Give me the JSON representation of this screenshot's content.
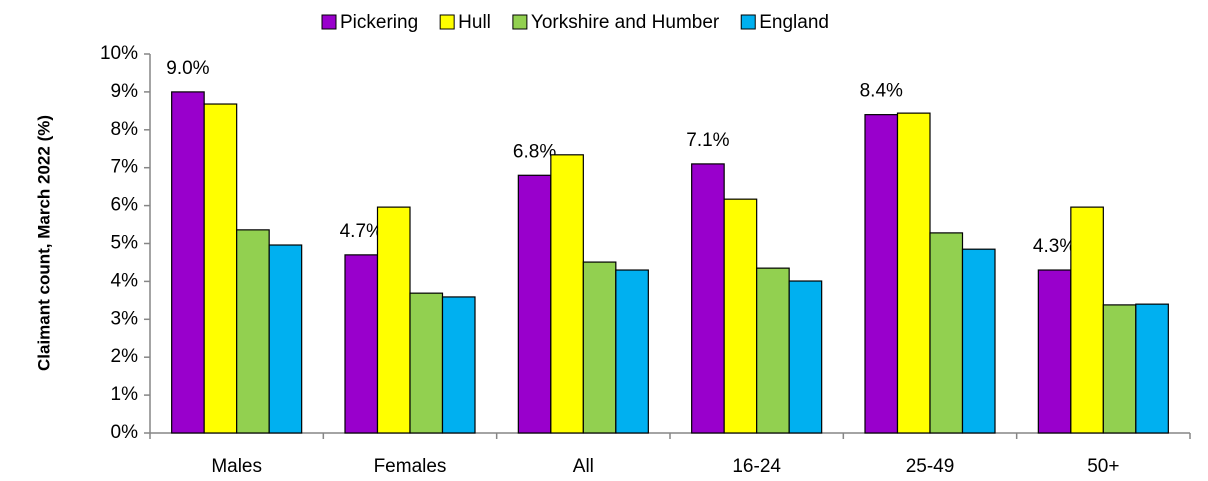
{
  "chart_data": {
    "type": "bar",
    "y_label": "Claimant count, March 2022 (%)",
    "categories": [
      "Males",
      "Females",
      "All",
      "16-24",
      "25-49",
      "50+"
    ],
    "series": [
      {
        "name": "Pickering",
        "color": "#9900cc",
        "values": [
          9.0,
          4.7,
          6.8,
          7.1,
          8.4,
          4.3
        ],
        "value_labels": [
          "9.0%",
          "4.7%",
          "6.8%",
          "7.1%",
          "8.4%",
          "4.3%"
        ]
      },
      {
        "name": "Hull",
        "color": "#ffff00",
        "values": [
          8.68,
          5.96,
          7.34,
          6.17,
          8.44,
          5.96
        ]
      },
      {
        "name": "Yorkshire and Humber",
        "color": "#92d050",
        "values": [
          5.36,
          3.69,
          4.51,
          4.35,
          5.28,
          3.38
        ]
      },
      {
        "name": "England",
        "color": "#00b0f0",
        "values": [
          4.96,
          3.59,
          4.3,
          4.01,
          4.85,
          3.4
        ]
      }
    ],
    "ylim": [
      0,
      10
    ],
    "yticks": [
      {
        "value": 0,
        "label": "0%"
      },
      {
        "value": 1,
        "label": "1%"
      },
      {
        "value": 2,
        "label": "2%"
      },
      {
        "value": 3,
        "label": "3%"
      },
      {
        "value": 4,
        "label": "4%"
      },
      {
        "value": 5,
        "label": "5%"
      },
      {
        "value": 6,
        "label": "6%"
      },
      {
        "value": 7,
        "label": "7%"
      },
      {
        "value": 8,
        "label": "8%"
      },
      {
        "value": 9,
        "label": "9%"
      },
      {
        "value": 10,
        "label": "10%"
      }
    ],
    "grid": false,
    "legend": "top"
  }
}
